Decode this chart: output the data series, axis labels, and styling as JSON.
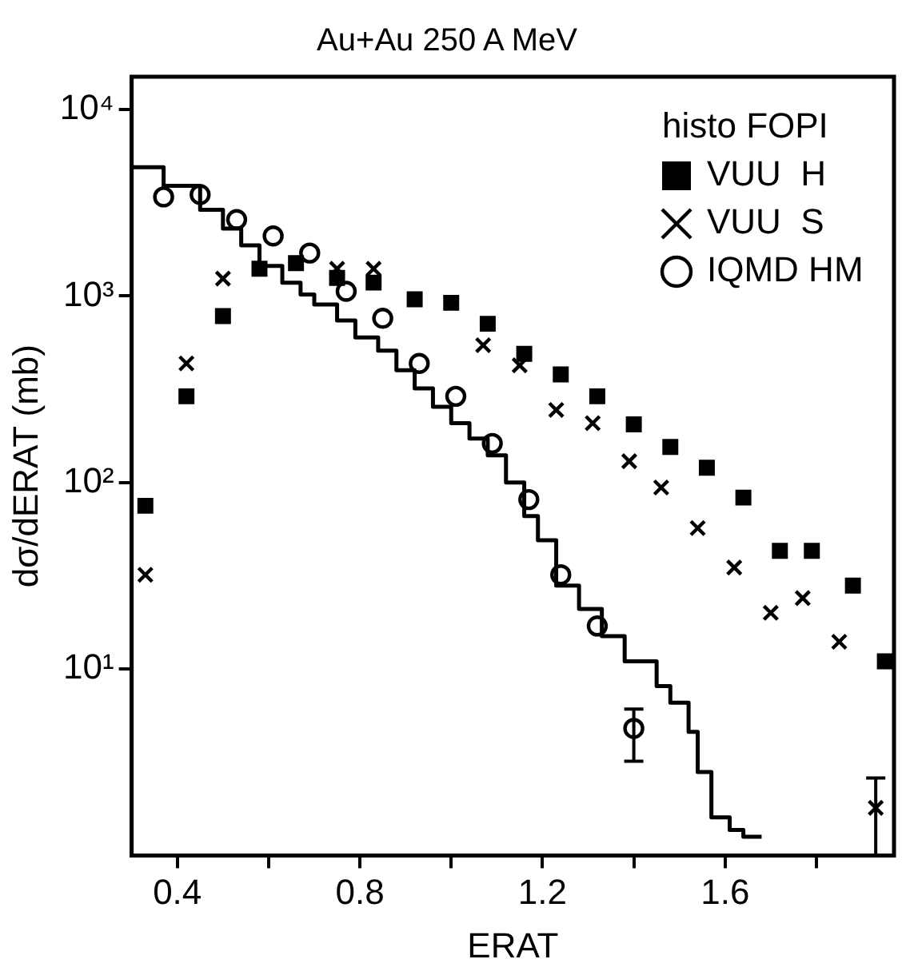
{
  "chart_data": {
    "type": "scatter",
    "title": "Au+Au 250 A MeV",
    "xlabel": "ERAT",
    "ylabel": "dσ/dERAT (mb)",
    "legend_title": "histo FOPI",
    "legend": "top right",
    "log": "y",
    "grid": false,
    "xlim": [
      0.3,
      1.97
    ],
    "xticks": [
      0.4,
      {
        "value": 0.6,
        "label": null
      },
      0.8,
      {
        "value": 1.0,
        "label": null
      },
      1.2,
      {
        "value": 1.4,
        "label": null
      },
      1.6,
      {
        "value": 1.8,
        "label": null
      }
    ],
    "ylim": [
      1,
      15000
    ],
    "yticks": [
      {
        "value": 10,
        "label": "10¹"
      },
      {
        "value": 100,
        "label": "10²"
      },
      {
        "value": 1000,
        "label": "10³"
      },
      {
        "value": 10000,
        "label": "10⁴"
      }
    ],
    "series": [
      {
        "type": "step",
        "color": "#000000",
        "line_style": "solid",
        "marker": "none",
        "x": [
          0.3,
          0.37,
          0.45,
          0.5,
          0.54,
          0.58,
          0.63,
          0.67,
          0.7,
          0.75,
          0.79,
          0.84,
          0.88,
          0.92,
          0.96,
          1.0,
          1.04,
          1.08,
          1.12,
          1.16,
          1.19,
          1.23,
          1.28,
          1.33,
          1.38,
          1.45,
          1.48,
          1.52,
          1.54,
          1.57,
          1.61,
          1.64,
          1.68
        ],
        "values": [
          4900,
          3900,
          2900,
          2300,
          1870,
          1450,
          1180,
          1020,
          900,
          740,
          600,
          510,
          400,
          320,
          255,
          208,
          172,
          140,
          100,
          66,
          49,
          28,
          21,
          15,
          11,
          8.1,
          6.6,
          4.6,
          2.8,
          1.6,
          1.37,
          1.26,
          1.26
        ]
      },
      {
        "name": "VUU  H",
        "color": "#000000",
        "marker": "square",
        "x": [
          0.33,
          0.42,
          0.5,
          0.58,
          0.66,
          0.75,
          0.83,
          0.92,
          1.0,
          1.08,
          1.16,
          1.24,
          1.32,
          1.4,
          1.48,
          1.56,
          1.64,
          1.72,
          1.79,
          1.88,
          1.95
        ],
        "values": [
          75,
          290,
          780,
          1400,
          1500,
          1250,
          1180,
          960,
          920,
          710,
          490,
          380,
          290,
          205,
          155,
          120,
          83,
          43,
          43,
          28,
          11
        ]
      },
      {
        "name": "VUU  S",
        "color": "#000000",
        "marker": "cross",
        "x": [
          0.33,
          0.42,
          0.5,
          0.75,
          0.83,
          1.0,
          1.07,
          1.15,
          1.23,
          1.31,
          1.39,
          1.46,
          1.54,
          1.62,
          1.7,
          1.77,
          1.85,
          1.93
        ],
        "values": [
          32,
          435,
          1240,
          1400,
          1400,
          920,
          545,
          425,
          245,
          208,
          130,
          94,
          57,
          35,
          20,
          24,
          14,
          1.8
        ],
        "errors": [
          null,
          null,
          null,
          null,
          null,
          null,
          null,
          null,
          null,
          null,
          null,
          null,
          null,
          null,
          null,
          null,
          null,
          [
            1,
            2.6
          ]
        ]
      },
      {
        "name": "IQMD HM",
        "color": "#000000",
        "marker": "circle",
        "x": [
          0.37,
          0.45,
          0.53,
          0.61,
          0.69,
          0.77,
          0.85,
          0.93,
          1.01,
          1.09,
          1.17,
          1.24,
          1.32,
          1.4
        ],
        "values": [
          3400,
          3500,
          2570,
          2100,
          1700,
          1060,
          760,
          435,
          290,
          162,
          81,
          32,
          17,
          4.8
        ],
        "errors": [
          null,
          null,
          null,
          null,
          null,
          null,
          null,
          null,
          null,
          null,
          null,
          null,
          null,
          [
            3.2,
            6.1
          ]
        ]
      }
    ]
  }
}
